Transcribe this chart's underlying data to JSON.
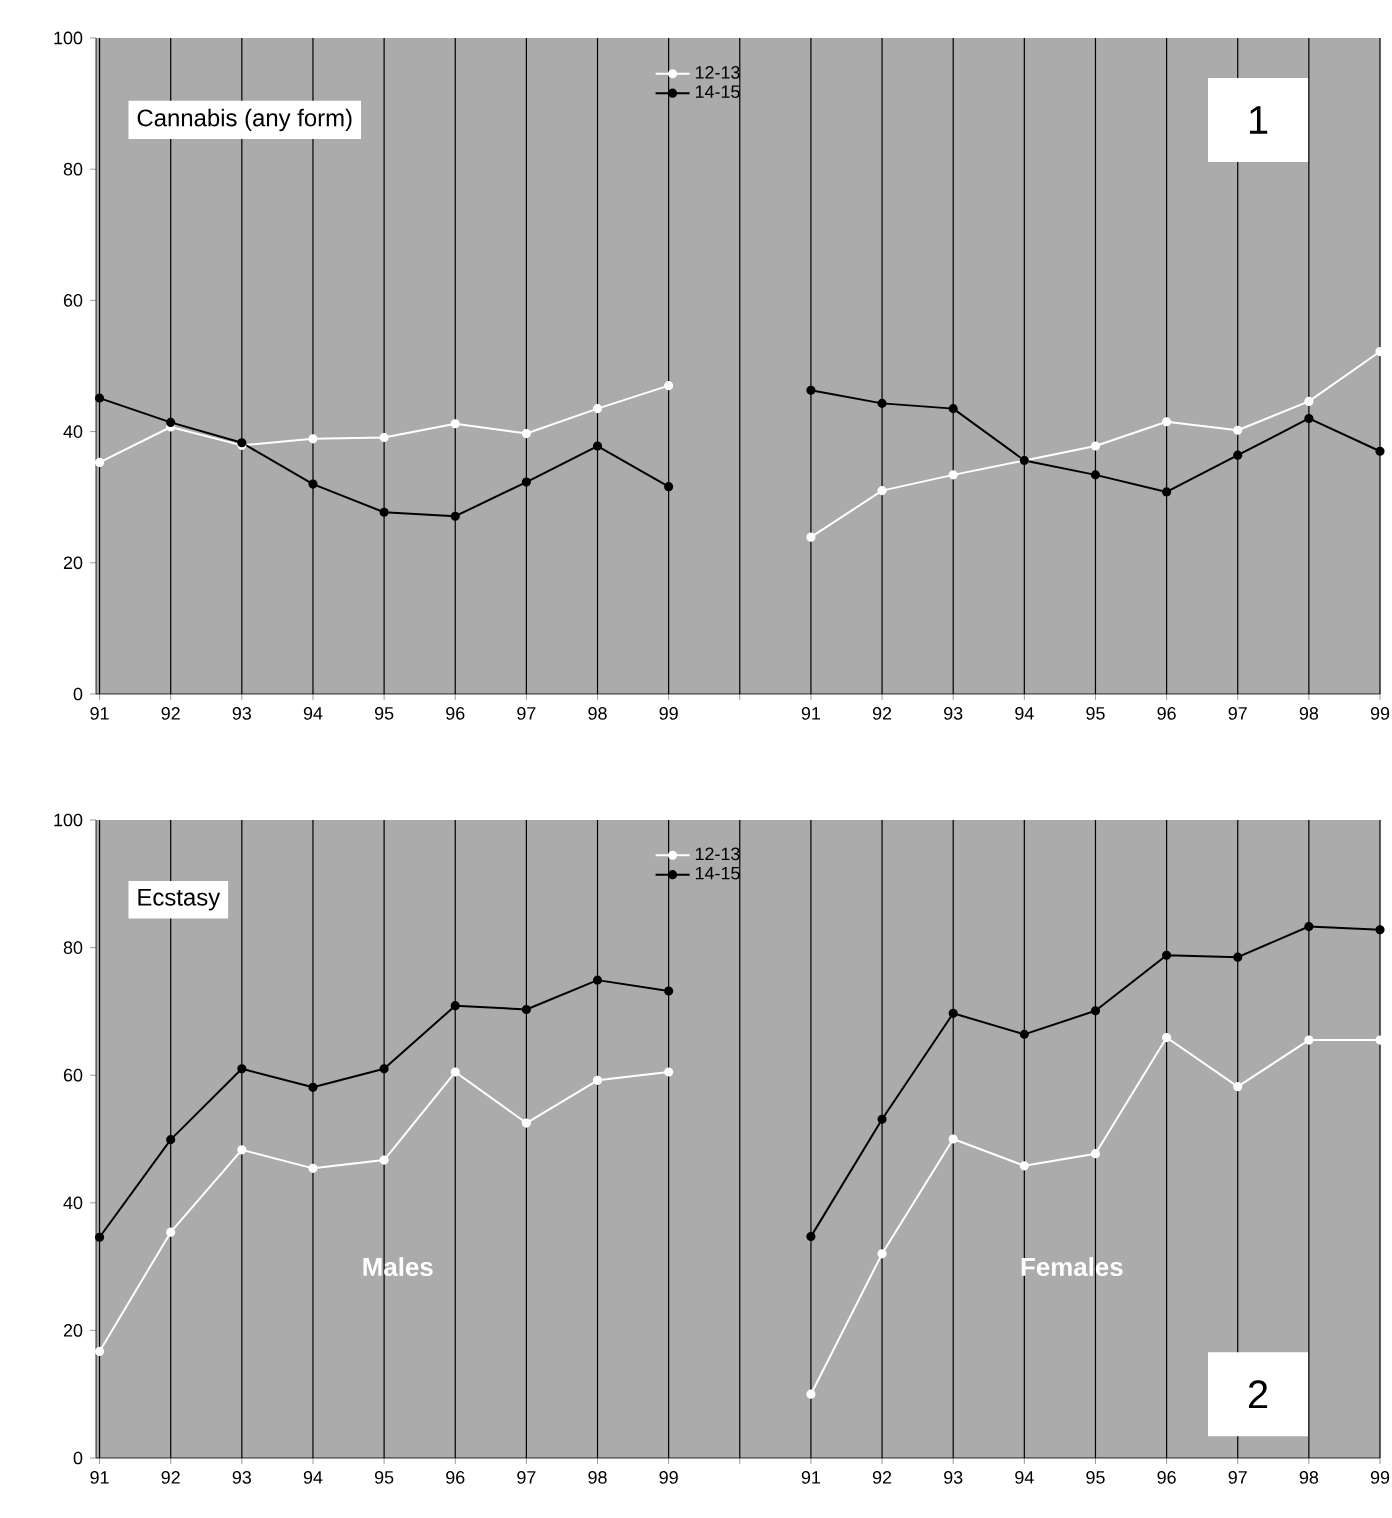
{
  "chart_data": [
    {
      "type": "line",
      "title": "Cannabis (any form)",
      "categories": [
        "91",
        "92",
        "93",
        "94",
        "95",
        "96",
        "97",
        "98",
        "99",
        null,
        "91",
        "92",
        "93",
        "94",
        "95",
        "96",
        "97",
        "98",
        "99"
      ],
      "series": [
        {
          "name": "12-13",
          "color": "#ffffff",
          "values": [
            35.3,
            40.7,
            37.9,
            38.9,
            39.1,
            41.2,
            39.7,
            43.5,
            47.0,
            null,
            23.9,
            31.0,
            33.4,
            35.6,
            37.8,
            41.5,
            40.2,
            44.6,
            52.2
          ]
        },
        {
          "name": "14-15",
          "color": "#000000",
          "values": [
            45.1,
            41.4,
            38.3,
            32.0,
            27.7,
            27.1,
            32.3,
            37.8,
            31.6,
            null,
            46.3,
            44.3,
            43.5,
            35.6,
            33.4,
            30.8,
            36.4,
            42.0,
            37.0
          ]
        }
      ],
      "ylim": [
        0,
        100
      ],
      "yticks": [
        0,
        20,
        40,
        60,
        80,
        100
      ],
      "grid": "x",
      "legend": "top",
      "marker": "circle",
      "line_style": "solid",
      "annotations": [
        "1"
      ]
    },
    {
      "type": "line",
      "title": "Ecstasy",
      "categories": [
        "91",
        "92",
        "93",
        "94",
        "95",
        "96",
        "97",
        "98",
        "99",
        null,
        "91",
        "92",
        "93",
        "94",
        "95",
        "96",
        "97",
        "98",
        "99"
      ],
      "series": [
        {
          "name": "12-13",
          "color": "#ffffff",
          "values": [
            16.7,
            35.4,
            48.3,
            45.4,
            46.7,
            60.5,
            52.5,
            59.2,
            60.5,
            null,
            10.0,
            32.0,
            50.0,
            45.8,
            47.7,
            65.9,
            58.2,
            65.5,
            65.5
          ]
        },
        {
          "name": "14-15",
          "color": "#000000",
          "values": [
            34.6,
            49.9,
            61.0,
            58.1,
            61.0,
            70.9,
            70.3,
            74.9,
            73.2,
            null,
            34.7,
            53.1,
            69.7,
            66.4,
            70.1,
            78.8,
            78.5,
            83.3,
            82.8
          ]
        }
      ],
      "ylim": [
        0,
        100
      ],
      "yticks": [
        0,
        20,
        40,
        60,
        80,
        100
      ],
      "grid": "x",
      "legend": "top",
      "marker": "circle",
      "line_style": "solid",
      "annotations": [
        "Males",
        "Females",
        "2"
      ]
    }
  ]
}
